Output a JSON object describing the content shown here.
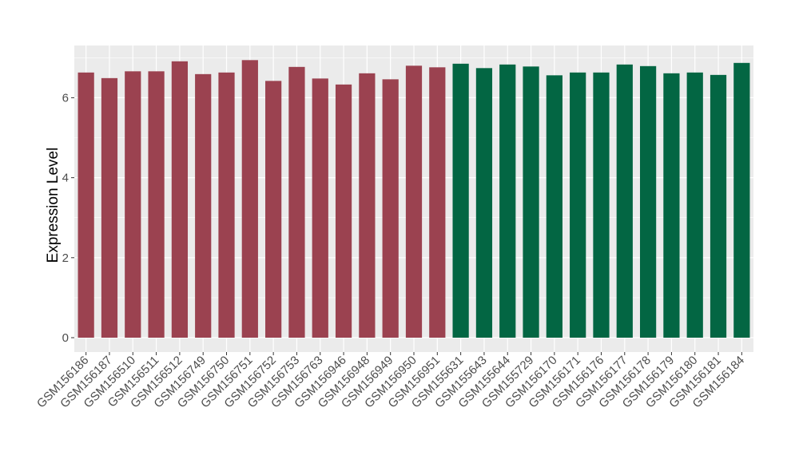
{
  "chart_data": {
    "type": "bar",
    "xlabel": "",
    "ylabel": "Expression Level",
    "ylim": [
      0,
      7.3
    ],
    "yticks": [
      0,
      2,
      4,
      6
    ],
    "ytick_labels": [
      "0",
      "2",
      "4",
      "6"
    ],
    "grid": true,
    "legend": "none",
    "categories": [
      "GSM156186",
      "GSM156187",
      "GSM156510",
      "GSM156511",
      "GSM156512",
      "GSM156749",
      "GSM156750",
      "GSM156751",
      "GSM156752",
      "GSM156753",
      "GSM156763",
      "GSM156946",
      "GSM156948",
      "GSM156949",
      "GSM156950",
      "GSM156951",
      "GSM155631",
      "GSM155643",
      "GSM155644",
      "GSM155729",
      "GSM156170",
      "GSM156171",
      "GSM156176",
      "GSM156177",
      "GSM156178",
      "GSM156179",
      "GSM156180",
      "GSM156181",
      "GSM156184"
    ],
    "values": [
      6.63,
      6.49,
      6.66,
      6.66,
      6.91,
      6.59,
      6.63,
      6.94,
      6.42,
      6.77,
      6.48,
      6.33,
      6.61,
      6.46,
      6.8,
      6.76,
      6.85,
      6.74,
      6.83,
      6.78,
      6.56,
      6.63,
      6.63,
      6.83,
      6.79,
      6.61,
      6.63,
      6.57,
      6.87
    ],
    "bar_colors": [
      "#9b4250",
      "#9b4250",
      "#9b4250",
      "#9b4250",
      "#9b4250",
      "#9b4250",
      "#9b4250",
      "#9b4250",
      "#9b4250",
      "#9b4250",
      "#9b4250",
      "#9b4250",
      "#9b4250",
      "#9b4250",
      "#9b4250",
      "#9b4250",
      "#036643",
      "#036643",
      "#036643",
      "#036643",
      "#036643",
      "#036643",
      "#036643",
      "#036643",
      "#036643",
      "#036643",
      "#036643",
      "#036643",
      "#036643"
    ],
    "panel_background": "#ebebeb",
    "gridline_color": "#ffffff"
  }
}
